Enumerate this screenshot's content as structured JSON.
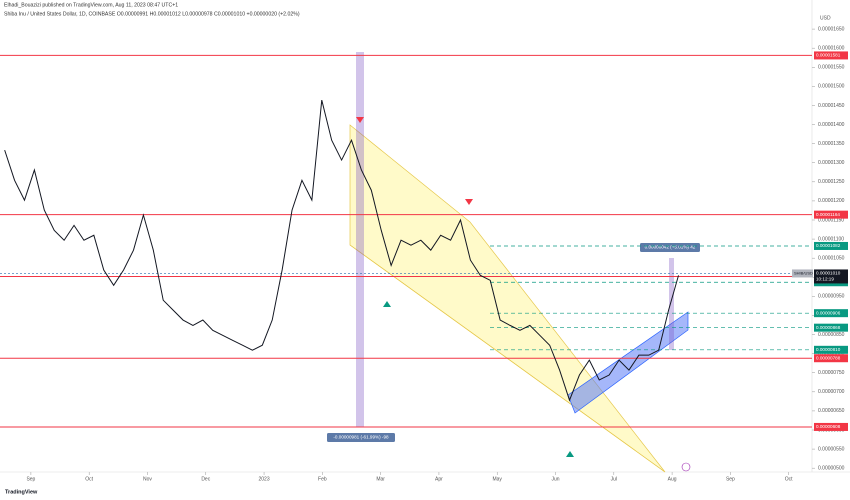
{
  "header": {
    "publisher": "Elhadi_Bouazizi published on TradingView.com, Aug 11, 2023 08:47 UTC+1",
    "symbol": "Shiba Inu / United States Dollar, 1D, COINBASE  O0.00000991 H0.00001012 L0.00000978 C0.00001010 +0.00000020 (+2.02%)"
  },
  "chart_data": {
    "type": "line",
    "currency": "USD",
    "color": "#131722",
    "xlim": [
      -0.53,
      13.4
    ],
    "xticks": [
      {
        "value": 0,
        "label": "Sep"
      },
      {
        "value": 1,
        "label": "Oct"
      },
      {
        "value": 2,
        "label": "Nov"
      },
      {
        "value": 3,
        "label": "Dec"
      },
      {
        "value": 4,
        "label": "2023"
      },
      {
        "value": 5,
        "label": "Feb"
      },
      {
        "value": 6,
        "label": "Mar"
      },
      {
        "value": 7,
        "label": "Apr"
      },
      {
        "value": 8,
        "label": "May"
      },
      {
        "value": 9,
        "label": "Jun"
      },
      {
        "value": 10,
        "label": "Jul"
      },
      {
        "value": 11,
        "label": "Aug"
      },
      {
        "value": 12,
        "label": "Sep"
      },
      {
        "value": 13,
        "label": "Oct"
      }
    ],
    "ylim": [
      4.9e-06,
      1.7e-05
    ],
    "yticks": [
      {
        "value": 5e-06,
        "label": "0.00000500"
      },
      {
        "value": 5.5e-06,
        "label": "0.00000550"
      },
      {
        "value": 6e-06,
        "label": "0.00000600"
      },
      {
        "value": 6.5e-06,
        "label": "0.00000650"
      },
      {
        "value": 7e-06,
        "label": "0.00000700"
      },
      {
        "value": 7.5e-06,
        "label": "0.00000750"
      },
      {
        "value": 8e-06,
        "label": "0.00000800"
      },
      {
        "value": 8.5e-06,
        "label": "0.00000850"
      },
      {
        "value": 9e-06,
        "label": "0.00000900"
      },
      {
        "value": 9.5e-06,
        "label": "0.00000950"
      },
      {
        "value": 1e-05,
        "label": "0.00001000"
      },
      {
        "value": 1.05e-05,
        "label": "0.00001050"
      },
      {
        "value": 1.1e-05,
        "label": "0.00001100"
      },
      {
        "value": 1.15e-05,
        "label": "0.00001150"
      },
      {
        "value": 1.2e-05,
        "label": "0.00001200"
      },
      {
        "value": 1.25e-05,
        "label": "0.00001250"
      },
      {
        "value": 1.3e-05,
        "label": "0.00001300"
      },
      {
        "value": 1.35e-05,
        "label": "0.00001350"
      },
      {
        "value": 1.4e-05,
        "label": "0.00001400"
      },
      {
        "value": 1.45e-05,
        "label": "0.00001450"
      },
      {
        "value": 1.5e-05,
        "label": "0.00001500"
      },
      {
        "value": 1.55e-05,
        "label": "0.00001550"
      },
      {
        "value": 1.6e-05,
        "label": "0.00001600"
      },
      {
        "value": 1.65e-05,
        "label": "0.00001650"
      }
    ],
    "x": [
      -0.45,
      -0.28,
      -0.11,
      0.06,
      0.23,
      0.4,
      0.57,
      0.74,
      0.91,
      1.08,
      1.25,
      1.42,
      1.59,
      1.76,
      1.93,
      2.1,
      2.27,
      2.44,
      2.61,
      2.78,
      2.95,
      3.12,
      3.29,
      3.46,
      3.63,
      3.8,
      3.97,
      4.14,
      4.31,
      4.48,
      4.65,
      4.82,
      4.99,
      5.16,
      5.33,
      5.5,
      5.67,
      5.84,
      6.01,
      6.18,
      6.35,
      6.52,
      6.69,
      6.86,
      7.03,
      7.2,
      7.37,
      7.54,
      7.71,
      7.88,
      8.05,
      8.22,
      8.39,
      8.56,
      8.73,
      8.9,
      9.07,
      9.24,
      9.41,
      9.58,
      9.75,
      9.92,
      10.09,
      10.26,
      10.43,
      10.6,
      10.77,
      10.94,
      11.11
    ],
    "values": [
      1.333e-05,
      1.254e-05,
      1.202e-05,
      1.281e-05,
      1.176e-05,
      1.123e-05,
      1.097e-05,
      1.136e-05,
      1.097e-05,
      1.11e-05,
      1.019e-05,
      9.79e-06,
      1.019e-05,
      1.071e-05,
      1.163e-05,
      1.071e-05,
      9.4e-06,
      9.14e-06,
      8.88e-06,
      8.74e-06,
      8.88e-06,
      8.61e-06,
      8.48e-06,
      8.35e-06,
      8.22e-06,
      8.09e-06,
      8.22e-06,
      8.88e-06,
      1.019e-05,
      1.176e-05,
      1.254e-05,
      1.202e-05,
      1.464e-05,
      1.359e-05,
      1.307e-05,
      1.359e-05,
      1.281e-05,
      1.228e-05,
      1.123e-05,
      1.031e-05,
      1.097e-05,
      1.084e-05,
      1.097e-05,
      1.071e-05,
      1.11e-05,
      1.097e-05,
      1.15e-05,
      1.045e-05,
      1.005e-05,
      9.92e-06,
      8.88e-06,
      8.74e-06,
      8.61e-06,
      8.74e-06,
      8.48e-06,
      8.22e-06,
      7.57e-06,
      6.78e-06,
      7.44e-06,
      7.83e-06,
      7.31e-06,
      7.44e-06,
      7.83e-06,
      7.57e-06,
      7.96e-06,
      7.96e-06,
      8.09e-06,
      9.14e-06,
      1.005e-05
    ],
    "levels": [
      {
        "value": 1.581e-05,
        "label": "0.00001581",
        "color": "#f23645",
        "style": "solid"
      },
      {
        "value": 1.164e-05,
        "label": "0.00001164",
        "color": "#f23645",
        "style": "solid"
      },
      {
        "value": 1.082e-05,
        "label": "0.00001082",
        "color": "#089981",
        "style": "dashed"
      },
      {
        "value": 1.002e-05,
        "label": "0.00001002",
        "color": "#f23645",
        "style": "solid"
      },
      {
        "value": 9.87e-06,
        "label": "0.00000987",
        "color": "#089981",
        "style": "dashed"
      },
      {
        "value": 9.06e-06,
        "label": "0.00000906",
        "color": "#089981",
        "style": "dashed"
      },
      {
        "value": 8.68e-06,
        "label": "0.00000868",
        "color": "#089981",
        "style": "dashed"
      },
      {
        "value": 8.1e-06,
        "label": "0.00000810",
        "color": "#089981",
        "style": "dashed"
      },
      {
        "value": 7.88e-06,
        "label": "0.00000788",
        "color": "#f23645",
        "style": "solid"
      },
      {
        "value": 6.08e-06,
        "label": "0.00000608",
        "color": "#f23645",
        "style": "solid"
      }
    ],
    "last_price": {
      "symbol": "SHIB/USD",
      "value": 1.01e-05,
      "label": "0.00001010",
      "countdown": "10:12:19"
    },
    "annotations": [
      "0.00000042 (+5.01%) 42",
      "-0.00000981 (-61.99%) -98"
    ],
    "brand": "TradingView"
  }
}
